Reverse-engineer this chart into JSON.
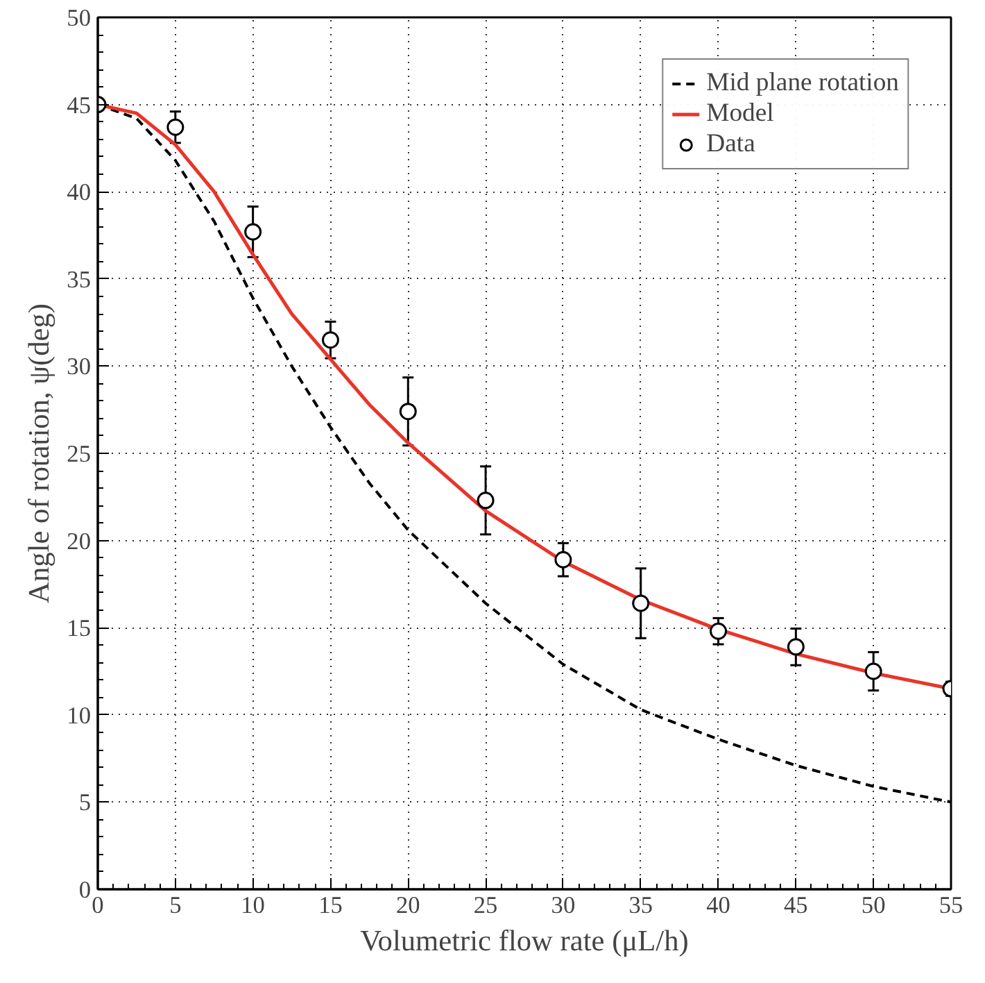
{
  "chart_data": {
    "type": "line",
    "xlabel": "Volumetric flow rate (μL/h)",
    "ylabel": "Angle of rotation, ψ(deg)",
    "xlim": [
      0,
      55
    ],
    "xticks": [
      0,
      5,
      10,
      15,
      20,
      25,
      30,
      35,
      40,
      45,
      50,
      55
    ],
    "ylim": [
      0,
      50
    ],
    "yticks": [
      0,
      5,
      10,
      15,
      20,
      25,
      30,
      35,
      40,
      45,
      50
    ],
    "grid": true,
    "legend": "top right",
    "series": [
      {
        "name": "Mid plane rotation",
        "line_style": "dashed",
        "color": "#000000",
        "x": [
          0,
          2.5,
          5,
          7.5,
          10,
          12.5,
          15,
          17.5,
          20,
          25,
          30,
          35,
          40,
          45,
          50,
          55
        ],
        "values": [
          45,
          44.2,
          41.8,
          38.3,
          33.9,
          30,
          26.5,
          23.3,
          20.6,
          16.4,
          12.9,
          10.3,
          8.6,
          7.1,
          5.9,
          5.0
        ]
      },
      {
        "name": "Model",
        "line_style": "solid",
        "color": "#e8352a",
        "x": [
          0,
          2.5,
          5,
          7.5,
          10,
          12.5,
          15,
          17.5,
          20,
          25,
          30,
          35,
          40,
          45,
          50,
          55
        ],
        "values": [
          45,
          44.5,
          42.7,
          40,
          36.4,
          33,
          30.4,
          27.8,
          25.6,
          21.7,
          18.8,
          16.6,
          14.9,
          13.5,
          12.4,
          11.5
        ]
      },
      {
        "name": "Data",
        "type": "scatter",
        "marker": "circle",
        "color": "#000000",
        "x": [
          0,
          5,
          10,
          15,
          20,
          25,
          30,
          35,
          40,
          45,
          50,
          55
        ],
        "values": [
          45,
          43.7,
          37.7,
          31.5,
          27.4,
          22.3,
          18.9,
          16.4,
          14.8,
          13.9,
          12.5,
          11.5
        ],
        "errors": [
          null,
          0.9,
          1.45,
          1.05,
          1.95,
          1.95,
          0.95,
          2,
          0.75,
          1.05,
          1.1,
          0.4
        ]
      }
    ]
  }
}
